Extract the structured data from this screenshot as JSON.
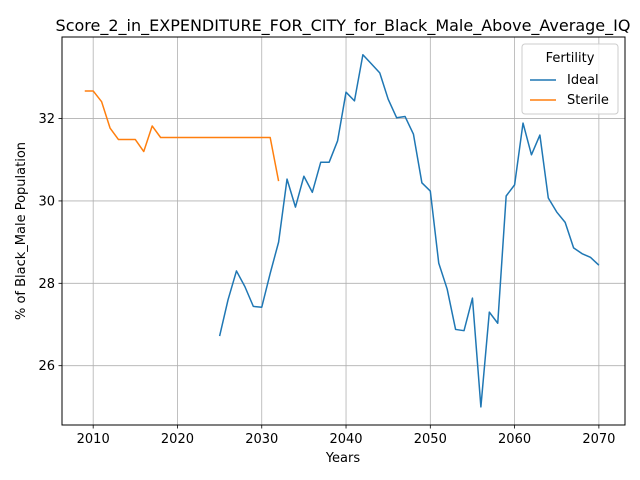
{
  "chart_data": {
    "type": "line",
    "title": "Score_2_in_EXPENDITURE_FOR_CITY_for_Black_Male_Above_Average_IQ",
    "xlabel": "Years",
    "ylabel": "% of Black_Male Population",
    "xlim": [
      2006.3,
      2073.1
    ],
    "ylim": [
      24.56,
      33.98
    ],
    "xticks": [
      2010,
      2020,
      2030,
      2040,
      2050,
      2060,
      2070
    ],
    "yticks": [
      26,
      28,
      30,
      32
    ],
    "grid": true,
    "legend": {
      "title": "Fertility",
      "placement": "upper right"
    },
    "series": [
      {
        "name": "Ideal",
        "color": "#1f77b4",
        "x": [
          2025,
          2026,
          2027,
          2028,
          2029,
          2030,
          2031,
          2032,
          2033,
          2034,
          2035,
          2036,
          2037,
          2038,
          2039,
          2040,
          2041,
          2042,
          2043,
          2044,
          2045,
          2046,
          2047,
          2048,
          2049,
          2050,
          2051,
          2052,
          2053,
          2054,
          2055,
          2056,
          2057,
          2058,
          2059,
          2060,
          2061,
          2062,
          2063,
          2064,
          2065,
          2066,
          2067,
          2068,
          2069,
          2070
        ],
        "y": [
          26.72,
          27.6,
          28.3,
          27.92,
          27.44,
          27.42,
          28.24,
          29.0,
          30.53,
          29.85,
          30.6,
          30.21,
          30.94,
          30.94,
          31.46,
          32.64,
          32.43,
          33.55,
          33.33,
          33.11,
          32.47,
          32.02,
          32.05,
          31.62,
          30.44,
          30.24,
          28.49,
          27.86,
          26.88,
          26.85,
          27.64,
          25.0,
          27.3,
          27.03,
          30.12,
          30.39,
          31.89,
          31.12,
          31.6,
          30.07,
          29.73,
          29.48,
          28.86,
          28.72,
          28.63,
          28.44
        ]
      },
      {
        "name": "Sterile",
        "color": "#ff7f0e",
        "x": [
          2009,
          2010,
          2011,
          2012,
          2013,
          2014,
          2015,
          2016,
          2017,
          2018,
          2019,
          2020,
          2021,
          2022,
          2023,
          2024,
          2025,
          2026,
          2027,
          2028,
          2029,
          2030,
          2031,
          2032
        ],
        "y": [
          32.67,
          32.67,
          32.41,
          31.77,
          31.49,
          31.49,
          31.49,
          31.2,
          31.82,
          31.54,
          31.54,
          31.54,
          31.54,
          31.54,
          31.54,
          31.54,
          31.54,
          31.54,
          31.54,
          31.54,
          31.54,
          31.54,
          31.54,
          30.48
        ]
      }
    ]
  }
}
